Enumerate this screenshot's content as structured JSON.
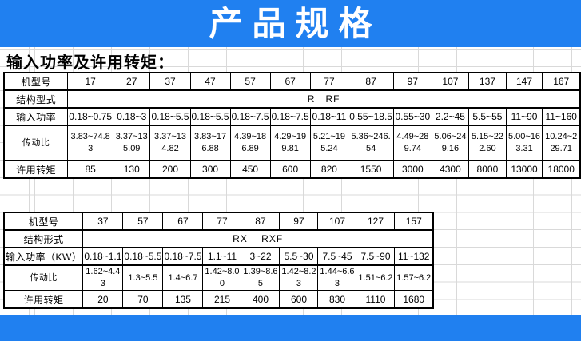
{
  "banner": {
    "title": "产品规格",
    "bg_color": "#2080f0",
    "text_color": "#ffffff"
  },
  "section": {
    "title": "输入功率及许用转矩："
  },
  "table1": {
    "row_labels": [
      "机型号",
      "结构型式",
      "输入功率",
      "传动比",
      "许用转矩"
    ],
    "models": [
      "17",
      "27",
      "37",
      "47",
      "57",
      "67",
      "77",
      "87",
      "97",
      "107",
      "137",
      "147",
      "167"
    ],
    "structure": "R   RF",
    "power": [
      "0.18~0.75",
      "0.18~3",
      "0.18~5.5",
      "0.18~5.5",
      "0.18~7.5",
      "0.18~7.5",
      "0.18~11",
      "0.55~18.5",
      "0.55~30",
      "2.2~45",
      "5.5~55",
      "11~90",
      "11~160"
    ],
    "ratio": [
      "3.83~74.83",
      "3.37~135.09",
      "3.37~134.82",
      "3.83~176.88",
      "4.39~186.89",
      "4.29~199.81",
      "5.21~195.24",
      "5.36~246.54",
      "4.49~289.74",
      "5.06~249.16",
      "5.15~222.60",
      "5.00~163.31",
      "10.24~229.71"
    ],
    "torque": [
      "85",
      "130",
      "200",
      "300",
      "450",
      "600",
      "820",
      "1550",
      "3000",
      "4300",
      "8000",
      "13000",
      "18000"
    ]
  },
  "table2": {
    "row_labels": [
      "机型号",
      "结构形式",
      "输入功率（KW）",
      "传动比",
      "许用转矩"
    ],
    "models": [
      "37",
      "57",
      "67",
      "77",
      "87",
      "97",
      "107",
      "127",
      "157"
    ],
    "structure": "RX    RXF",
    "power": [
      "0.18~1.1",
      "0.18~5.5",
      "0.18~7.5",
      "1.1~11",
      "3~22",
      "5.5~30",
      "7.5~45",
      "7.5~90",
      "11~132"
    ],
    "ratio": [
      "1.62~4.43",
      "1.3~5.5",
      "1.4~6.7",
      "1.42~8.00",
      "1.39~8.65",
      "1.42~8.23",
      "1.44~6.63",
      "1.51~6.2",
      "1.57~6.2"
    ],
    "torque": [
      "20",
      "70",
      "135",
      "215",
      "400",
      "600",
      "830",
      "1110",
      "1680"
    ]
  }
}
